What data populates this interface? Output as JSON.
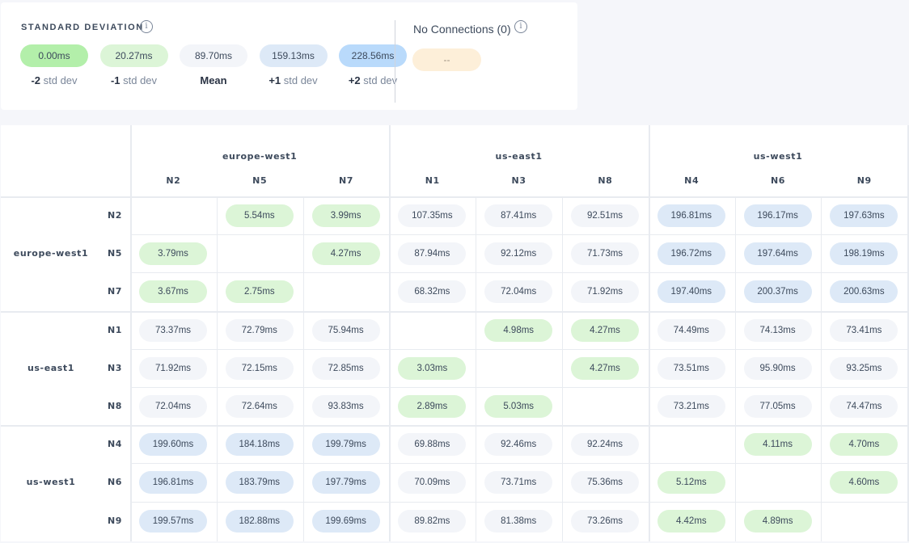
{
  "legend": {
    "title": "STANDARD DEVIATION",
    "info_icon": "i",
    "items": [
      {
        "value": "0.00ms",
        "prefix": "-2",
        "suffix": " std dev",
        "color": "#b3efaa"
      },
      {
        "value": "20.27ms",
        "prefix": "-1",
        "suffix": " std dev",
        "color": "#dcf5d7"
      },
      {
        "value": "89.70ms",
        "prefix": "Mean",
        "suffix": "",
        "color": "#f3f5f9"
      },
      {
        "value": "159.13ms",
        "prefix": "+1",
        "suffix": " std dev",
        "color": "#dde9f7"
      },
      {
        "value": "228.56ms",
        "prefix": "+2",
        "suffix": " std dev",
        "color": "#b9dafb"
      }
    ],
    "no_connections": {
      "label": "No Connections (0)",
      "value": "--",
      "color": "#fdefd9"
    }
  },
  "regions": [
    {
      "name": "europe-west1",
      "nodes": [
        "N2",
        "N5",
        "N7"
      ]
    },
    {
      "name": "us-east1",
      "nodes": [
        "N1",
        "N3",
        "N8"
      ]
    },
    {
      "name": "us-west1",
      "nodes": [
        "N4",
        "N6",
        "N9"
      ]
    }
  ],
  "matrix": [
    [
      "",
      "5.54ms",
      "3.99ms",
      "107.35ms",
      "87.41ms",
      "92.51ms",
      "196.81ms",
      "196.17ms",
      "197.63ms"
    ],
    [
      "3.79ms",
      "",
      "4.27ms",
      "87.94ms",
      "92.12ms",
      "71.73ms",
      "196.72ms",
      "197.64ms",
      "198.19ms"
    ],
    [
      "3.67ms",
      "2.75ms",
      "",
      "68.32ms",
      "72.04ms",
      "71.92ms",
      "197.40ms",
      "200.37ms",
      "200.63ms"
    ],
    [
      "73.37ms",
      "72.79ms",
      "75.94ms",
      "",
      "4.98ms",
      "4.27ms",
      "74.49ms",
      "74.13ms",
      "73.41ms"
    ],
    [
      "71.92ms",
      "72.15ms",
      "72.85ms",
      "3.03ms",
      "",
      "4.27ms",
      "73.51ms",
      "95.90ms",
      "93.25ms"
    ],
    [
      "72.04ms",
      "72.64ms",
      "93.83ms",
      "2.89ms",
      "5.03ms",
      "",
      "73.21ms",
      "77.05ms",
      "74.47ms"
    ],
    [
      "199.60ms",
      "184.18ms",
      "199.79ms",
      "69.88ms",
      "92.46ms",
      "92.24ms",
      "",
      "4.11ms",
      "4.70ms"
    ],
    [
      "196.81ms",
      "183.79ms",
      "197.79ms",
      "70.09ms",
      "73.71ms",
      "75.36ms",
      "5.12ms",
      "",
      "4.60ms"
    ],
    [
      "199.57ms",
      "182.88ms",
      "199.69ms",
      "89.82ms",
      "81.38ms",
      "73.26ms",
      "4.42ms",
      "4.89ms",
      ""
    ]
  ]
}
